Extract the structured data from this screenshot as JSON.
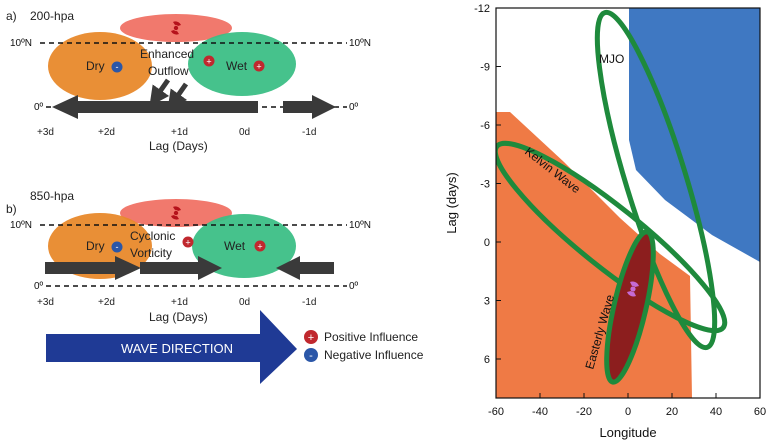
{
  "panel_a": {
    "label": "a)",
    "level": "200-hpa",
    "lat_left": "10ºN",
    "lat_right": "10ºN",
    "eq_left": "0º",
    "eq_right": "0º",
    "dry": "Dry",
    "wet": "Wet",
    "annot_line1": "Enhanced",
    "annot_line2": "Outflow",
    "lag_ticks": [
      "+3d",
      "+2d",
      "+1d",
      "0d",
      "-1d"
    ],
    "xlabel": "Lag (Days)"
  },
  "panel_b": {
    "label": "b)",
    "level": "850-hpa",
    "lat_left": "10ºN",
    "lat_right": "10ºN",
    "eq_left": "0º",
    "eq_right": "0º",
    "dry": "Dry",
    "wet": "Wet",
    "annot_line1": "Cyclonic",
    "annot_line2": "Vorticity",
    "lag_ticks": [
      "+3d",
      "+2d",
      "+1d",
      "0d",
      "-1d"
    ],
    "xlabel": "Lag (Days)"
  },
  "wave_direction": "WAVE DIRECTION",
  "legend": {
    "positive": "Positive Influence",
    "negative": "Negative Influence",
    "plus": "+",
    "minus": "-"
  },
  "colors": {
    "dry": "#e8892b",
    "wet": "#3cbf86",
    "storm_band": "#ef6a5d",
    "arrow": "#3a3a3a",
    "wave_arrow": "#1f3a95",
    "plus_marker": "#c0282e",
    "minus_marker": "#2b57a8",
    "kelvin_region": "#ef7a45",
    "mjo_region": "#3f78c2",
    "easterly_region": "#8c1e1e",
    "ellipse_outline": "#1e8a3c"
  },
  "chart_data": {
    "type": "diagram",
    "xlabel": "Longitude",
    "ylabel": "Lag (days)",
    "xlim": [
      -60,
      60
    ],
    "ylim": [
      -12,
      8
    ],
    "y_inverted": true,
    "xticks": [
      -60,
      -40,
      -20,
      0,
      20,
      40,
      60
    ],
    "yticks": [
      -12,
      -9,
      -6,
      -3,
      0,
      3,
      6
    ],
    "xtick_labels": [
      "-60",
      "-40",
      "-20",
      "0",
      "20",
      "40",
      "60"
    ],
    "ytick_labels": [
      "-12",
      "-9",
      "-6",
      "-3",
      "0",
      "3",
      "6"
    ],
    "regions": [
      {
        "name": "MJO",
        "label": "MJO"
      },
      {
        "name": "Kelvin Wave",
        "label": "Kelvin Wave"
      },
      {
        "name": "Easterly Wave",
        "label": "Easterly Wave"
      }
    ]
  }
}
